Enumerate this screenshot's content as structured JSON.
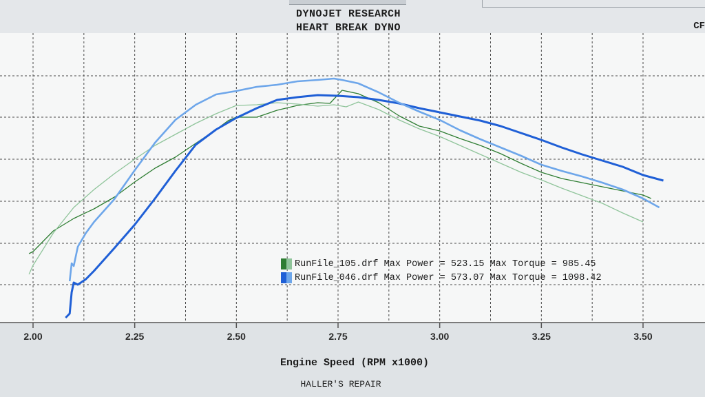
{
  "header": {
    "line1": "DYNOJET RESEARCH",
    "line2": "HEART BREAK DYNO",
    "corner": "CF"
  },
  "footer": "HALLER'S REPAIR",
  "chart_data": {
    "type": "line",
    "title": "",
    "xlabel": "Engine Speed (RPM x1000)",
    "ylabel": "",
    "xlim": [
      1.98,
      3.65
    ],
    "xticks": [
      "2.00",
      "2.25",
      "2.50",
      "2.75",
      "3.00",
      "3.25",
      "3.50"
    ],
    "grid": true,
    "legend_position": "center",
    "series": [
      {
        "file": "RunFile_105.drf",
        "max_power_label": "Max Power =",
        "max_power": "523.15",
        "max_torque_label": "Max Torque =",
        "max_torque": "985.45",
        "colors": [
          "#2e7d32",
          "#8fc49a"
        ],
        "curves": [
          {
            "kind": "power",
            "color": "#2e7d32",
            "x": [
              1.99,
              2.0,
              2.05,
              2.1,
              2.15,
              2.2,
              2.25,
              2.3,
              2.35,
              2.4,
              2.45,
              2.48,
              2.5,
              2.55,
              2.6,
              2.65,
              2.7,
              2.73,
              2.76,
              2.8,
              2.85,
              2.9,
              2.95,
              3.0,
              3.05,
              3.1,
              3.15,
              3.2,
              3.25,
              3.3,
              3.35,
              3.4,
              3.45,
              3.5,
              3.52
            ],
            "y": [
              368,
              365,
              335,
              317,
              303,
              286,
              264,
              244,
              228,
              208,
              188,
              175,
              170,
              170,
              160,
              153,
              149,
              150,
              131,
              136,
              149,
              168,
              183,
              190,
              201,
              211,
              223,
              237,
              250,
              259,
              265,
              271,
              277,
              283,
              288
            ]
          },
          {
            "kind": "torque",
            "color": "#8fc49a",
            "x": [
              1.99,
              2.0,
              2.05,
              2.1,
              2.15,
              2.2,
              2.25,
              2.3,
              2.35,
              2.4,
              2.45,
              2.5,
              2.55,
              2.6,
              2.65,
              2.7,
              2.74,
              2.77,
              2.8,
              2.85,
              2.9,
              2.95,
              3.0,
              3.05,
              3.1,
              3.15,
              3.2,
              3.25,
              3.3,
              3.35,
              3.4,
              3.45,
              3.5
            ],
            "y": [
              398,
              385,
              338,
              301,
              275,
              252,
              231,
              211,
              195,
              179,
              165,
              153,
              152,
              149,
              151,
              154,
              152,
              155,
              148,
              159,
              174,
              187,
              198,
              211,
              224,
              237,
              250,
              261,
              273,
              284,
              295,
              309,
              322
            ]
          }
        ]
      },
      {
        "file": "RunFile_046.drf",
        "max_power_label": "Max Power =",
        "max_power": "573.07",
        "max_torque_label": "Max Torque =",
        "max_torque": "1098.42",
        "colors": [
          "#1f5fd6",
          "#6da6ea"
        ],
        "curves": [
          {
            "kind": "power",
            "color": "#1f5fd6",
            "x": [
              2.08,
              2.09,
              2.095,
              2.1,
              2.11,
              2.13,
              2.15,
              2.2,
              2.25,
              2.3,
              2.35,
              2.4,
              2.45,
              2.5,
              2.55,
              2.6,
              2.65,
              2.7,
              2.75,
              2.8,
              2.85,
              2.9,
              2.95,
              3.0,
              3.05,
              3.1,
              3.15,
              3.2,
              3.25,
              3.3,
              3.35,
              3.4,
              3.45,
              3.5,
              3.55
            ],
            "y": [
              461,
              455,
              424,
              410,
              413,
              405,
              393,
              360,
              326,
              288,
              248,
              210,
              188,
              171,
              157,
              145,
              141,
              138,
              139,
              141,
              145,
              150,
              157,
              163,
              169,
              175,
              183,
              193,
              203,
              214,
              224,
              233,
              242,
              254,
              262
            ]
          },
          {
            "kind": "torque",
            "color": "#6da6ea",
            "x": [
              2.09,
              2.095,
              2.1,
              2.11,
              2.13,
              2.15,
              2.2,
              2.25,
              2.3,
              2.35,
              2.4,
              2.45,
              2.5,
              2.55,
              2.6,
              2.65,
              2.7,
              2.74,
              2.76,
              2.8,
              2.85,
              2.9,
              2.95,
              3.0,
              3.05,
              3.1,
              3.15,
              3.2,
              3.25,
              3.3,
              3.35,
              3.4,
              3.45,
              3.5,
              3.54
            ],
            "y": [
              408,
              382,
              386,
              358,
              338,
              322,
              289,
              247,
              207,
              174,
              152,
              137,
              132,
              126,
              123,
              118,
              116,
              114,
              116,
              121,
              134,
              149,
              162,
              174,
              189,
              202,
              214,
              226,
              239,
              248,
              256,
              265,
              275,
              288,
              301
            ]
          }
        ]
      }
    ]
  }
}
